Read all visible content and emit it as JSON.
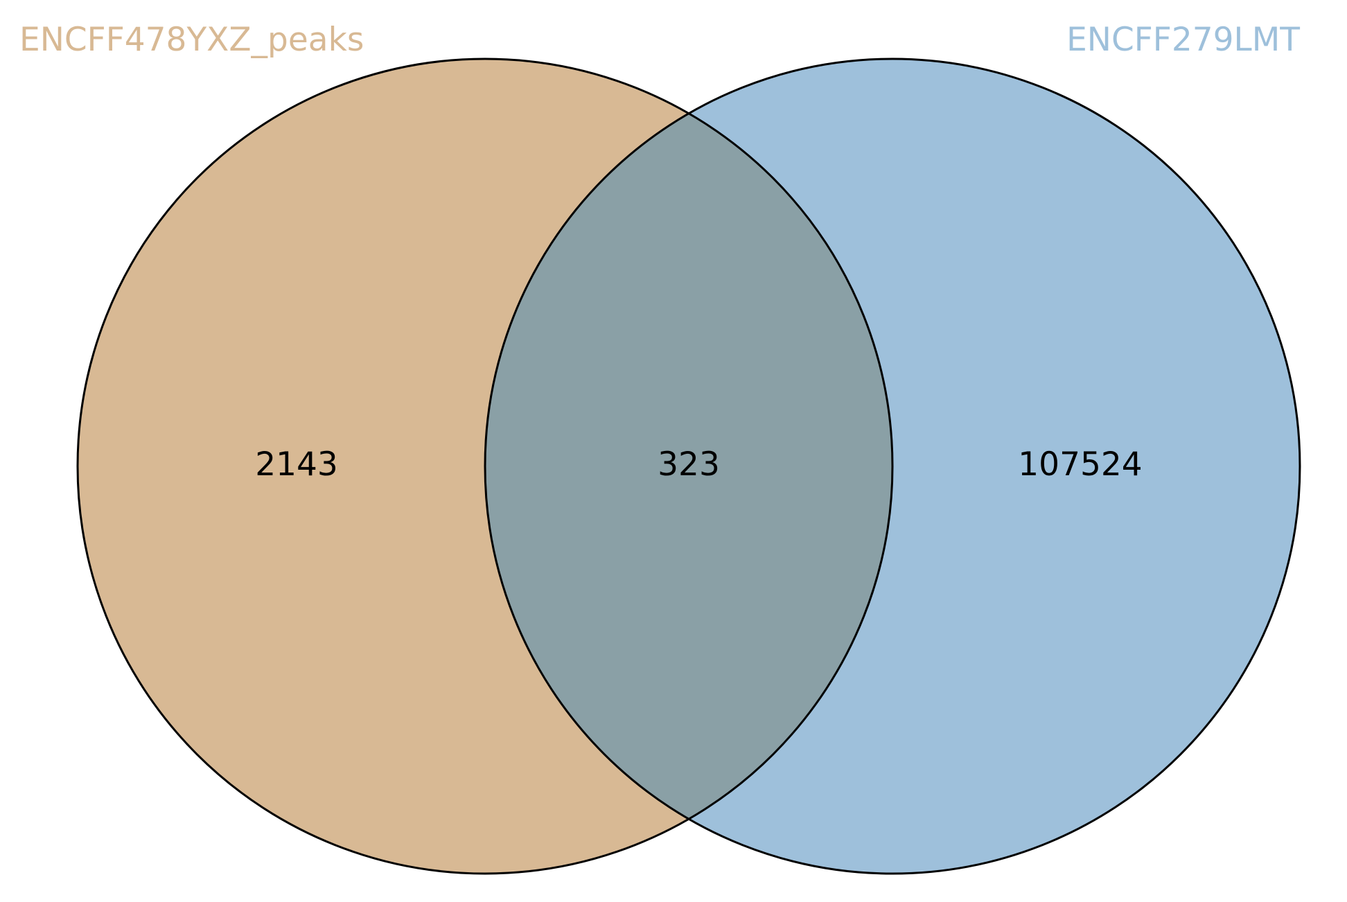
{
  "diagram": {
    "type": "venn",
    "sets": [
      {
        "name": "ENCFF478YXZ_peaks",
        "color": "#d8b994",
        "label_color": "#d8b994",
        "only_count": "2143"
      },
      {
        "name": "ENCFF279LMT",
        "color": "#9ec0db",
        "label_color": "#9ec0db",
        "only_count": "107524"
      }
    ],
    "intersection": {
      "count": "323",
      "color": "#8aa0a6"
    },
    "outline_color": "#000000"
  }
}
